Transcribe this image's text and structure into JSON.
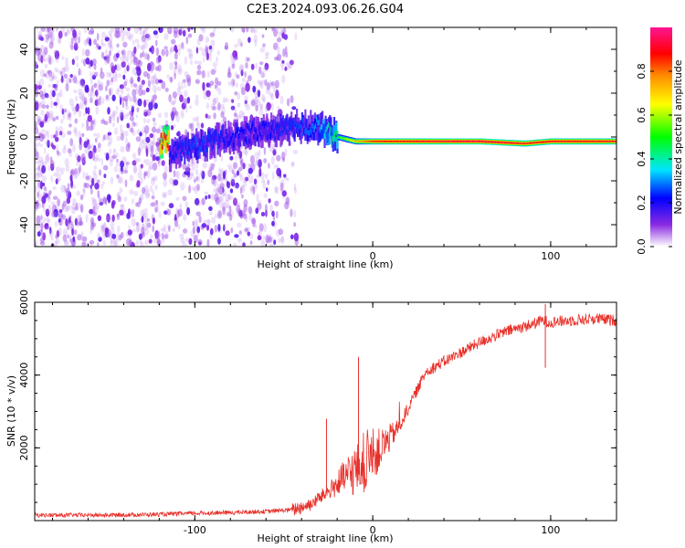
{
  "figure": {
    "title": "C2E3.2024.093.06.26.G04"
  },
  "chart_data": [
    {
      "type": "heatmap",
      "xlabel": "Height of straight line (km)",
      "ylabel": "Frequency (Hz)",
      "xlim": [
        -190,
        137
      ],
      "ylim": [
        -50,
        50
      ],
      "x_ticks": [
        -100,
        0,
        100
      ],
      "x_tick_labels": [
        "-100",
        "0",
        "100"
      ],
      "y_ticks": [
        -40,
        -20,
        0,
        20,
        40
      ],
      "y_tick_labels": [
        "-40",
        "-20",
        "0",
        "20",
        "40"
      ],
      "colorbar": {
        "label": "Normalized spectral amplitude",
        "range": [
          0,
          1
        ],
        "ticks": [
          0.0,
          0.2,
          0.4,
          0.6,
          0.8
        ],
        "tick_labels": [
          "0.0",
          "0.2",
          "0.4",
          "0.6",
          "0.8"
        ],
        "colors": [
          "#ffffff",
          "#8a2be2",
          "#0000ff",
          "#00e5ff",
          "#00ff00",
          "#ffff00",
          "#ff8c00",
          "#ff0000",
          "#ff1493"
        ]
      },
      "signal_track": {
        "description": "",
        "points": [
          {
            "x": -115,
            "f": -8,
            "amp": 0.25
          },
          {
            "x": -100,
            "f": -4,
            "amp": 0.3
          },
          {
            "x": -80,
            "f": 0,
            "amp": 0.25
          },
          {
            "x": -60,
            "f": 3,
            "amp": 0.25
          },
          {
            "x": -40,
            "f": 5,
            "amp": 0.3
          },
          {
            "x": -30,
            "f": 4,
            "amp": 0.35
          },
          {
            "x": -20,
            "f": 0,
            "amp": 0.5
          },
          {
            "x": -10,
            "f": -2,
            "amp": 0.7
          },
          {
            "x": 0,
            "f": -2,
            "amp": 0.85
          },
          {
            "x": 20,
            "f": -2,
            "amp": 0.9
          },
          {
            "x": 60,
            "f": -2,
            "amp": 0.95
          },
          {
            "x": 85,
            "f": -3,
            "amp": 0.9
          },
          {
            "x": 100,
            "f": -2,
            "amp": 0.9
          },
          {
            "x": 137,
            "f": -2,
            "amp": 0.9
          }
        ]
      }
    },
    {
      "type": "line",
      "xlabel": "Height of straight line (km)",
      "ylabel": "SNR (10 * v/v)",
      "xlim": [
        -190,
        137
      ],
      "ylim": [
        0,
        6000
      ],
      "x_ticks": [
        -100,
        0,
        100
      ],
      "x_tick_labels": [
        "-100",
        "0",
        "100"
      ],
      "y_ticks": [
        2000,
        4000,
        6000
      ],
      "y_tick_labels": [
        "2000",
        "4000",
        "6000"
      ],
      "color": "#e8302a",
      "series": [
        {
          "name": "",
          "x": [
            -190,
            -150,
            -120,
            -100,
            -80,
            -60,
            -45,
            -35,
            -25,
            -15,
            -5,
            5,
            15,
            25,
            30,
            45,
            60,
            75,
            90,
            95,
            100,
            110,
            125,
            137
          ],
          "y": [
            150,
            150,
            170,
            200,
            220,
            250,
            300,
            450,
            800,
            1200,
            1600,
            2000,
            2600,
            3600,
            4100,
            4500,
            4900,
            5200,
            5400,
            5500,
            5450,
            5500,
            5550,
            5500
          ]
        }
      ],
      "spikes": [
        {
          "x": -8,
          "y": 4500
        },
        {
          "x": -26,
          "y": 2800
        },
        {
          "x": 97,
          "y": 5950
        },
        {
          "x": 97,
          "y": 4200
        }
      ]
    }
  ]
}
